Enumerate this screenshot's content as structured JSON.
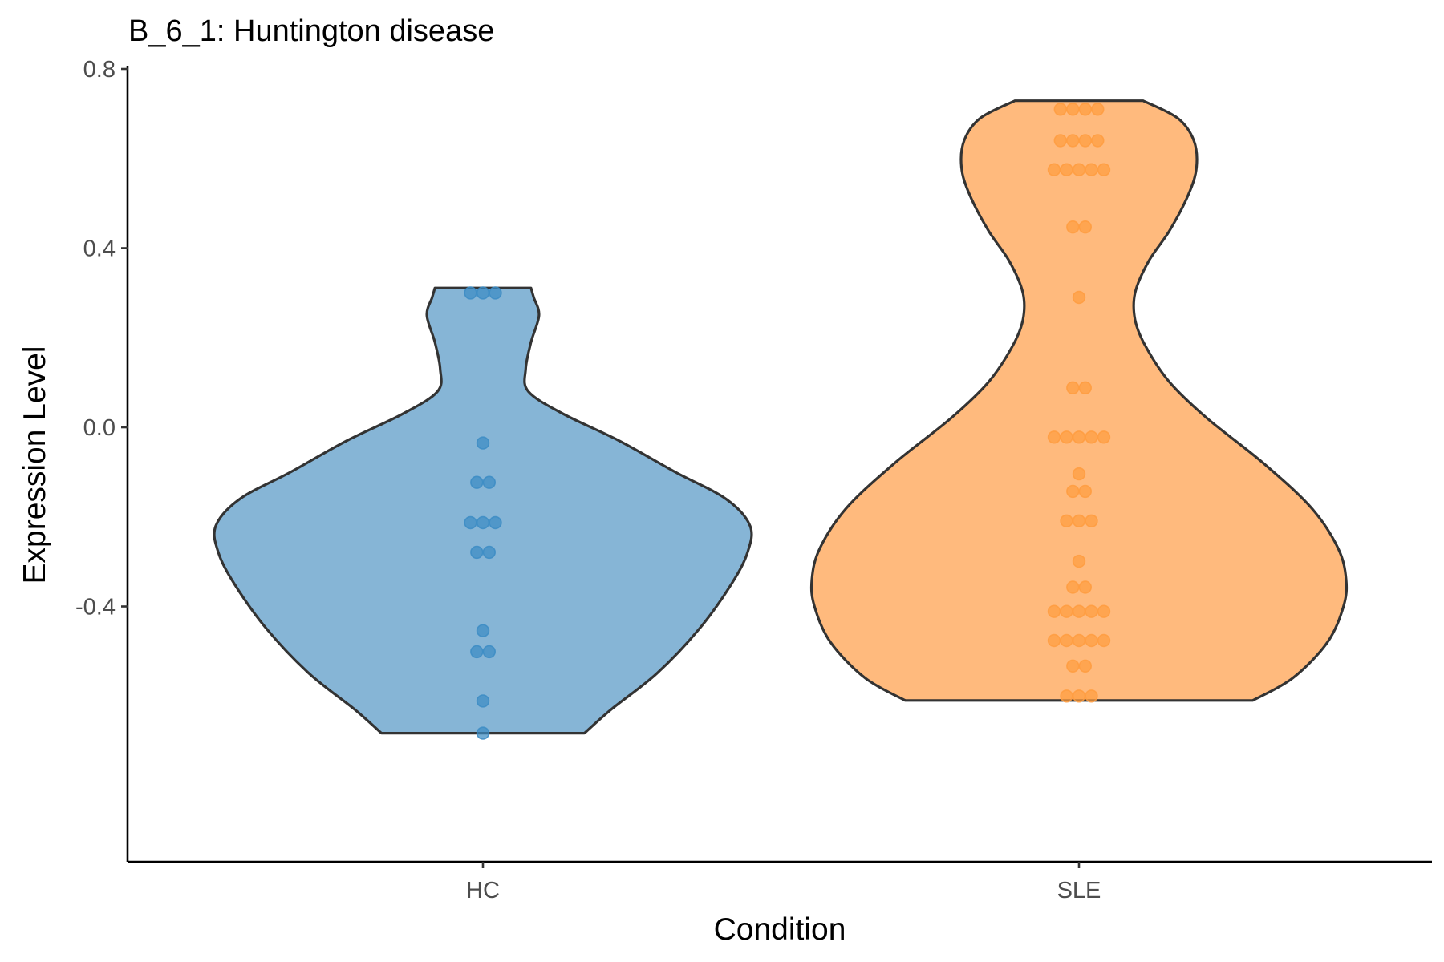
{
  "chart_data": {
    "type": "violin",
    "title": "B_6_1: Huntington disease",
    "xlabel": "Condition",
    "ylabel": "Expression Level",
    "ylim": [
      -0.97,
      0.8
    ],
    "yticks": [
      0.8,
      0.4,
      0.0,
      -0.4
    ],
    "ytick_labels": [
      "0.8",
      "0.4",
      "0.0",
      "-0.4"
    ],
    "grid": false,
    "legend": "none",
    "categories": [
      "HC",
      "SLE"
    ],
    "groups": [
      {
        "name": "HC",
        "fill": "#1f77b4",
        "point_color": "#3c8cc4",
        "min": -0.683,
        "max": 0.311,
        "points": [
          0.3,
          0.3,
          0.3,
          -0.035,
          -0.123,
          -0.123,
          -0.213,
          -0.213,
          -0.213,
          -0.279,
          -0.279,
          -0.454,
          -0.501,
          -0.501,
          -0.611,
          -0.683
        ],
        "density": [
          [
            -0.683,
            0.38
          ],
          [
            -0.63,
            0.48
          ],
          [
            -0.55,
            0.65
          ],
          [
            -0.45,
            0.81
          ],
          [
            -0.35,
            0.93
          ],
          [
            -0.28,
            0.99
          ],
          [
            -0.22,
            1.0
          ],
          [
            -0.16,
            0.91
          ],
          [
            -0.1,
            0.72
          ],
          [
            -0.03,
            0.51
          ],
          [
            0.03,
            0.3
          ],
          [
            0.08,
            0.17
          ],
          [
            0.13,
            0.16
          ],
          [
            0.19,
            0.18
          ],
          [
            0.25,
            0.21
          ],
          [
            0.29,
            0.19
          ],
          [
            0.311,
            0.18
          ]
        ]
      },
      {
        "name": "SLE",
        "fill": "#ff7f0e",
        "point_color": "#ff9c3f",
        "min": -0.61,
        "max": 0.729,
        "points": [
          0.71,
          0.71,
          0.71,
          0.71,
          0.64,
          0.64,
          0.64,
          0.64,
          0.575,
          0.575,
          0.575,
          0.575,
          0.575,
          0.447,
          0.447,
          0.29,
          0.088,
          0.088,
          -0.022,
          -0.022,
          -0.022,
          -0.022,
          -0.022,
          -0.104,
          -0.143,
          -0.143,
          -0.209,
          -0.209,
          -0.209,
          -0.299,
          -0.357,
          -0.357,
          -0.411,
          -0.411,
          -0.411,
          -0.411,
          -0.411,
          -0.476,
          -0.476,
          -0.476,
          -0.476,
          -0.476,
          -0.533,
          -0.533,
          -0.6,
          -0.6,
          -0.6
        ],
        "density": [
          [
            -0.61,
            0.65
          ],
          [
            -0.56,
            0.8
          ],
          [
            -0.48,
            0.93
          ],
          [
            -0.4,
            0.99
          ],
          [
            -0.34,
            1.0
          ],
          [
            -0.27,
            0.97
          ],
          [
            -0.18,
            0.87
          ],
          [
            -0.08,
            0.69
          ],
          [
            0.02,
            0.48
          ],
          [
            0.1,
            0.34
          ],
          [
            0.18,
            0.25
          ],
          [
            0.24,
            0.21
          ],
          [
            0.3,
            0.21
          ],
          [
            0.37,
            0.26
          ],
          [
            0.44,
            0.34
          ],
          [
            0.52,
            0.41
          ],
          [
            0.58,
            0.44
          ],
          [
            0.64,
            0.43
          ],
          [
            0.69,
            0.37
          ],
          [
            0.729,
            0.24
          ]
        ]
      }
    ]
  }
}
